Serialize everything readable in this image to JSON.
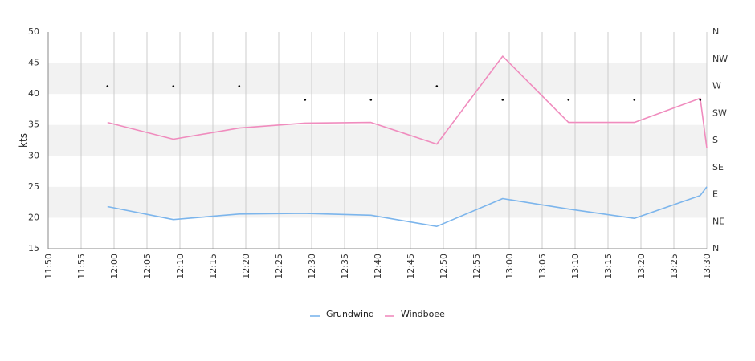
{
  "chart_data": {
    "type": "line",
    "ylabel": "kts",
    "ylim": [
      15,
      50
    ],
    "yticks": [
      15,
      20,
      25,
      30,
      35,
      40,
      45,
      50
    ],
    "x_tick_labels": [
      "11:50",
      "11:55",
      "12:00",
      "12:05",
      "12:10",
      "12:15",
      "12:20",
      "12:25",
      "12:30",
      "12:35",
      "12:40",
      "12:45",
      "12:50",
      "12:55",
      "13:00",
      "13:05",
      "13:10",
      "13:15",
      "13:20",
      "13:25",
      "13:30"
    ],
    "x_range": [
      "11:50",
      "13:30"
    ],
    "direction_ticks": [
      "N",
      "NW",
      "W",
      "SW",
      "S",
      "SE",
      "E",
      "NE",
      "N"
    ],
    "grid": true,
    "legend_position": "bottom-center",
    "series": [
      {
        "name": "Grundwind",
        "color": "#7cb5ec",
        "points": [
          {
            "x": "11:59",
            "y": 21.8
          },
          {
            "x": "12:09",
            "y": 19.7
          },
          {
            "x": "12:19",
            "y": 20.6
          },
          {
            "x": "12:29",
            "y": 20.7
          },
          {
            "x": "12:39",
            "y": 20.4
          },
          {
            "x": "12:49",
            "y": 18.6
          },
          {
            "x": "12:59",
            "y": 23.1
          },
          {
            "x": "13:09",
            "y": 21.4
          },
          {
            "x": "13:19",
            "y": 19.9
          },
          {
            "x": "13:29",
            "y": 23.6
          },
          {
            "x": "13:30",
            "y": 25.0
          }
        ]
      },
      {
        "name": "Windboee",
        "color": "#f08cbe",
        "points": [
          {
            "x": "11:59",
            "y": 35.4
          },
          {
            "x": "12:09",
            "y": 32.7
          },
          {
            "x": "12:19",
            "y": 34.5
          },
          {
            "x": "12:29",
            "y": 35.3
          },
          {
            "x": "12:39",
            "y": 35.4
          },
          {
            "x": "12:49",
            "y": 31.9
          },
          {
            "x": "12:59",
            "y": 46.1
          },
          {
            "x": "13:09",
            "y": 35.4
          },
          {
            "x": "13:19",
            "y": 35.4
          },
          {
            "x": "13:29",
            "y": 39.3
          },
          {
            "x": "13:30",
            "y": 31.3
          }
        ]
      }
    ],
    "direction_points": [
      {
        "x": "11:59",
        "dir": "W"
      },
      {
        "x": "12:09",
        "dir": "W"
      },
      {
        "x": "12:19",
        "dir": "W"
      },
      {
        "x": "12:29",
        "dir": "WSW"
      },
      {
        "x": "12:39",
        "dir": "WSW"
      },
      {
        "x": "12:49",
        "dir": "W"
      },
      {
        "x": "12:59",
        "dir": "WSW"
      },
      {
        "x": "13:09",
        "dir": "WSW"
      },
      {
        "x": "13:19",
        "dir": "WSW"
      },
      {
        "x": "13:29",
        "dir": "WSW"
      }
    ],
    "colors": {
      "band": "#f2f2f2",
      "grid": "#cccccc",
      "axis": "#888888",
      "marker": "#000000"
    }
  }
}
